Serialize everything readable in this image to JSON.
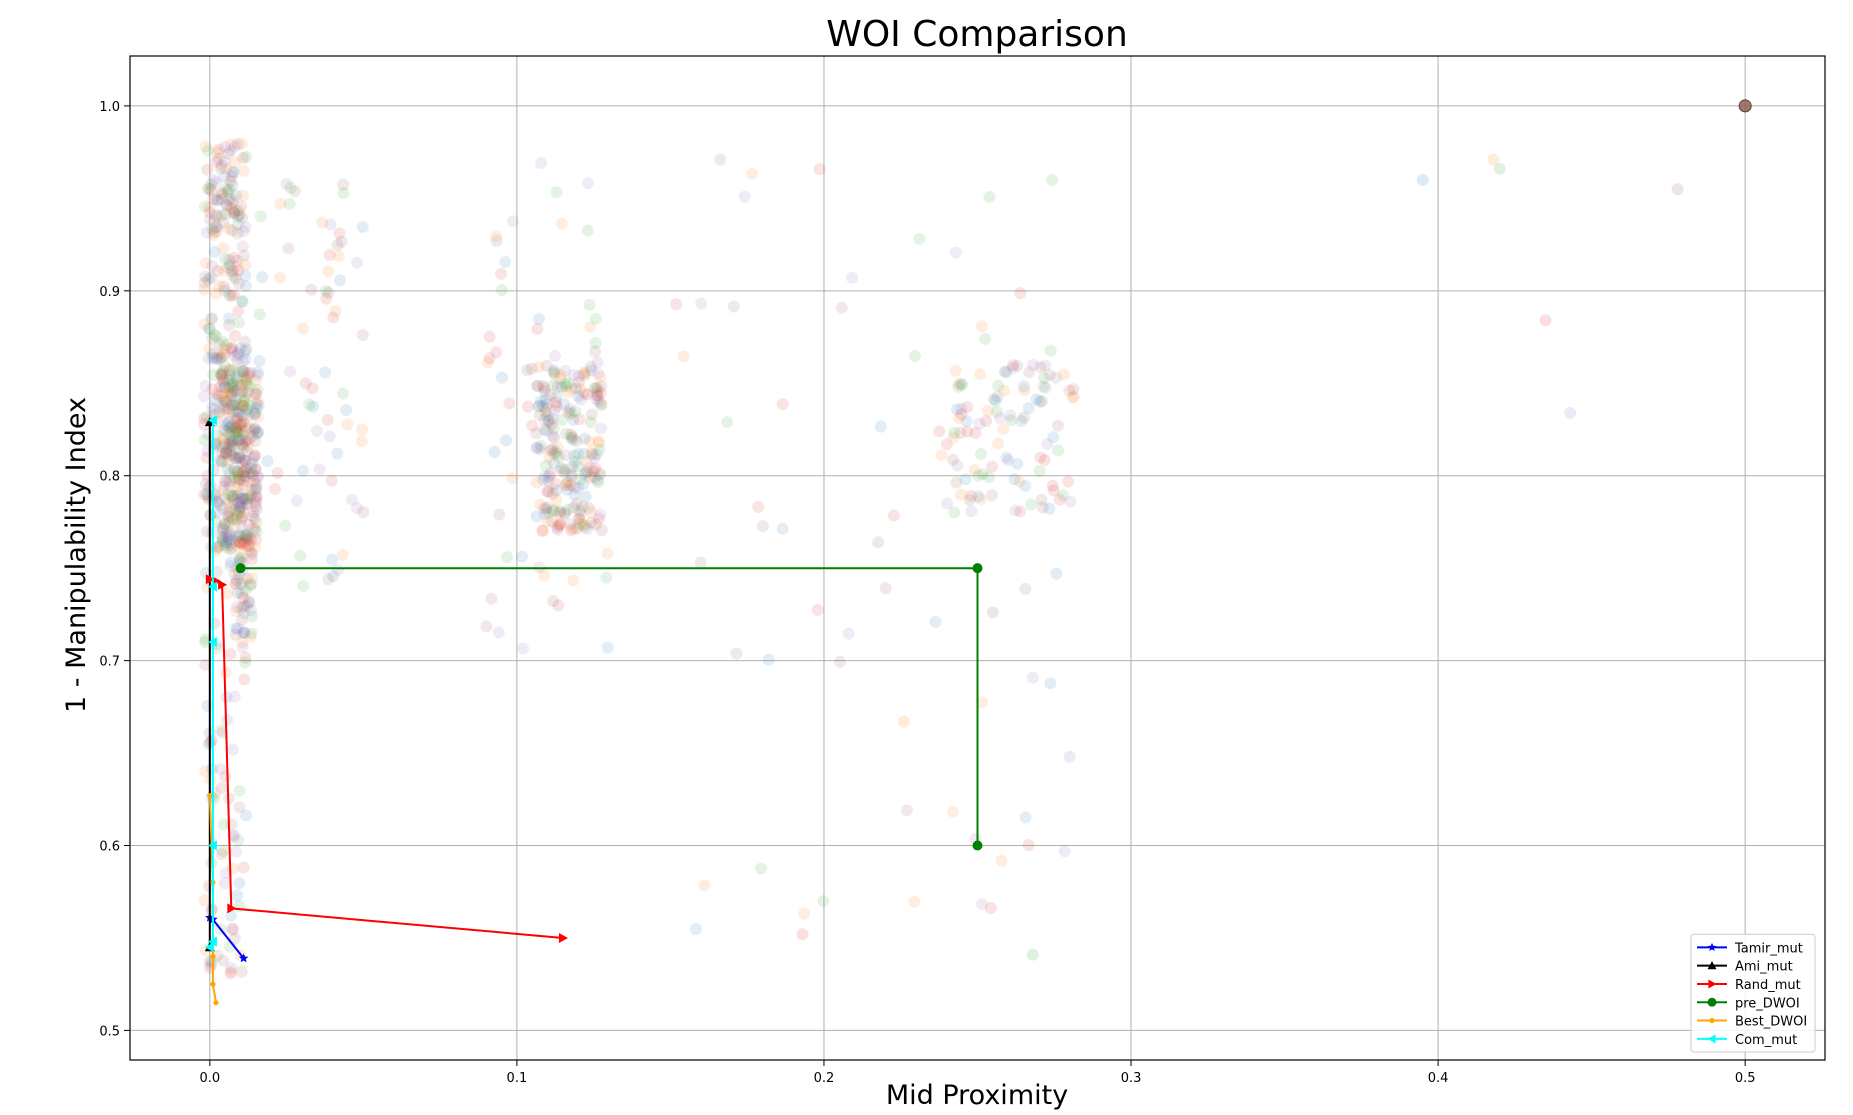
{
  "chart_data": {
    "type": "scatter",
    "title": "WOI Comparison",
    "xlabel": "Mid Proximity",
    "ylabel": "1 - Manipulability Index",
    "xlim": [
      -0.026,
      0.526
    ],
    "ylim": [
      0.484,
      1.027
    ],
    "x_ticks": [
      0.0,
      0.1,
      0.2,
      0.3,
      0.4,
      0.5
    ],
    "x_tick_labels": [
      "0.0",
      "0.1",
      "0.2",
      "0.3",
      "0.4",
      "0.5"
    ],
    "y_ticks": [
      0.5,
      0.6,
      0.7,
      0.8,
      0.9,
      1.0
    ],
    "y_tick_labels": [
      "0.5",
      "0.6",
      "0.7",
      "0.8",
      "0.9",
      "1.0"
    ],
    "grid": true,
    "legend_position": "lower right",
    "background_scatter": {
      "note": "semi-transparent population points",
      "colors": [
        "#1f77b4",
        "#ff7f0e",
        "#2ca02c",
        "#d62728",
        "#9467bd",
        "#8c564b"
      ],
      "clusters": [
        {
          "x_range": [
            -0.002,
            0.012
          ],
          "y_range": [
            0.76,
            0.98
          ],
          "count": 300
        },
        {
          "x_range": [
            0.004,
            0.016
          ],
          "y_range": [
            0.76,
            0.86
          ],
          "count": 240
        },
        {
          "x_range": [
            0.008,
            0.014
          ],
          "y_range": [
            0.71,
            0.77
          ],
          "count": 40
        },
        {
          "x_range": [
            -0.002,
            0.012
          ],
          "y_range": [
            0.53,
            0.76
          ],
          "count": 90
        },
        {
          "x_range": [
            0.012,
            0.05
          ],
          "y_range": [
            0.74,
            0.98
          ],
          "count": 70
        },
        {
          "x_range": [
            0.106,
            0.128
          ],
          "y_range": [
            0.77,
            0.86
          ],
          "count": 200
        },
        {
          "x_range": [
            0.09,
            0.13
          ],
          "y_range": [
            0.68,
            0.97
          ],
          "count": 60
        },
        {
          "x_range": [
            0.24,
            0.282
          ],
          "y_range": [
            0.78,
            0.86
          ],
          "count": 100
        },
        {
          "x_range": [
            0.15,
            0.28
          ],
          "y_range": [
            0.55,
            0.98
          ],
          "count": 60
        }
      ],
      "outliers": [
        {
          "x": 0.395,
          "y": 0.96
        },
        {
          "x": 0.418,
          "y": 0.971
        },
        {
          "x": 0.42,
          "y": 0.966
        },
        {
          "x": 0.435,
          "y": 0.884
        },
        {
          "x": 0.443,
          "y": 0.834
        },
        {
          "x": 0.478,
          "y": 0.955
        },
        {
          "x": 0.5,
          "y": 1.0
        },
        {
          "x": 0.226,
          "y": 0.667
        },
        {
          "x": 0.268,
          "y": 0.541
        },
        {
          "x": 0.193,
          "y": 0.552
        },
        {
          "x": 0.28,
          "y": 0.648
        },
        {
          "x": 0.255,
          "y": 0.726
        }
      ]
    },
    "series": [
      {
        "name": "Tamir_mut",
        "color": "#0000ff",
        "marker": "star",
        "points": [
          [
            0.0,
            0.561
          ],
          [
            0.001,
            0.56
          ],
          [
            0.011,
            0.539
          ]
        ]
      },
      {
        "name": "Ami_mut",
        "color": "#000000",
        "marker": "triangle-up",
        "points": [
          [
            0.0,
            0.545
          ],
          [
            0.0,
            0.829
          ]
        ]
      },
      {
        "name": "Rand_mut",
        "color": "#ff0000",
        "marker": "triangle-right",
        "points": [
          [
            0.0,
            0.744
          ],
          [
            0.002,
            0.743
          ],
          [
            0.004,
            0.741
          ],
          [
            0.007,
            0.566
          ],
          [
            0.115,
            0.55
          ]
        ]
      },
      {
        "name": "pre_DWOI",
        "color": "#008000",
        "marker": "circle",
        "points": [
          [
            0.01,
            0.75
          ],
          [
            0.25,
            0.75
          ],
          [
            0.25,
            0.6
          ]
        ]
      },
      {
        "name": "Best_DWOI",
        "color": "#ffa500",
        "marker": "point",
        "points": [
          [
            0.0,
            0.627
          ],
          [
            0.001,
            0.58
          ],
          [
            0.001,
            0.54
          ],
          [
            0.001,
            0.525
          ],
          [
            0.002,
            0.515
          ]
        ]
      },
      {
        "name": "Com_mut",
        "color": "#00ffff",
        "marker": "triangle-left",
        "points": [
          [
            0.001,
            0.83
          ],
          [
            0.001,
            0.74
          ],
          [
            0.001,
            0.71
          ],
          [
            0.001,
            0.6
          ],
          [
            0.001,
            0.548
          ],
          [
            0.0,
            0.545
          ]
        ]
      }
    ]
  }
}
